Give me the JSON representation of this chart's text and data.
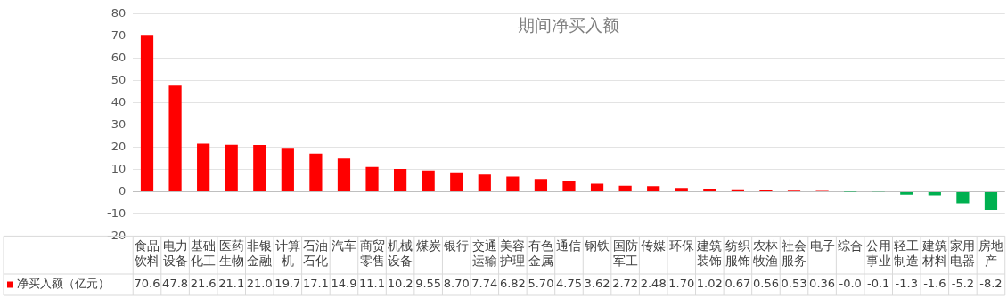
{
  "chart_data": {
    "type": "bar",
    "title": "期间净买入额",
    "categories": [
      "食品饮料",
      "电力设备",
      "基础化工",
      "医药生物",
      "非银金融",
      "计算机",
      "石油石化",
      "汽车",
      "商贸零售",
      "机械设备",
      "煤炭",
      "银行",
      "交通运输",
      "美容护理",
      "有色金属",
      "通信",
      "钢铁",
      "国防军工",
      "传媒",
      "环保",
      "建筑装饰",
      "纺织服饰",
      "农林牧渔",
      "社会服务",
      "电子",
      "综合",
      "公用事业",
      "轻工制造",
      "建筑材料",
      "家用电器",
      "房地产"
    ],
    "series": [
      {
        "name": "净买入额（亿元）",
        "color": "#ff0000",
        "colors": [
          "#ff0000",
          "#ff0000",
          "#ff0000",
          "#ff0000",
          "#ff0000",
          "#ff0000",
          "#ff0000",
          "#ff0000",
          "#ff0000",
          "#ff0000",
          "#ff0000",
          "#ff0000",
          "#ff0000",
          "#ff0000",
          "#ff0000",
          "#ff0000",
          "#ff0000",
          "#ff0000",
          "#ff0000",
          "#ff0000",
          "#ff0000",
          "#ff0000",
          "#ff0000",
          "#ff0000",
          "#ff0000",
          "#00b050",
          "#00b050",
          "#00b050",
          "#00b050",
          "#00b050",
          "#00b050"
        ],
        "values": [
          70.6,
          47.8,
          21.6,
          21.1,
          21.0,
          19.7,
          17.1,
          14.9,
          11.1,
          10.2,
          9.55,
          8.7,
          7.74,
          6.82,
          5.7,
          4.75,
          3.62,
          2.72,
          2.48,
          1.7,
          1.02,
          0.67,
          0.56,
          0.53,
          0.36,
          -0.04,
          -0.1,
          -1.3,
          -1.6,
          -5.2,
          -8.2
        ],
        "value_labels": [
          "70.6",
          "47.8",
          "21.6",
          "21.1",
          "21.0",
          "19.7",
          "17.1",
          "14.9",
          "11.1",
          "10.2",
          "9.55",
          "8.70",
          "7.74",
          "6.82",
          "5.70",
          "4.75",
          "3.62",
          "2.72",
          "2.48",
          "1.70",
          "1.02",
          "0.67",
          "0.56",
          "0.53",
          "0.36",
          "-0.0",
          "-0.1",
          "-1.3",
          "-1.6",
          "-5.2",
          "-8.2"
        ]
      }
    ],
    "ylim": [
      -20,
      80
    ],
    "yticks": [
      -20,
      -10,
      0,
      10,
      20,
      30,
      40,
      50,
      60,
      70,
      80
    ],
    "grid": "y",
    "legend": "bottom left"
  }
}
